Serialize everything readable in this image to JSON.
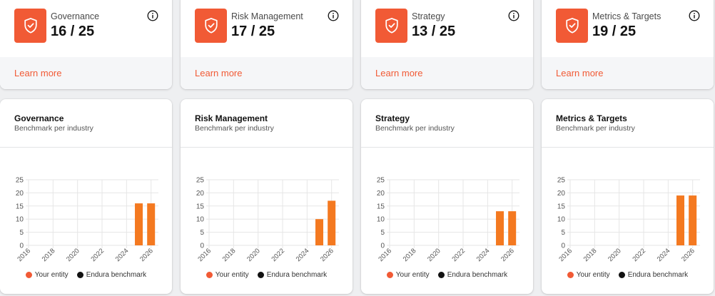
{
  "colors": {
    "accent": "#f15a35",
    "entity_bar": "#f47920",
    "benchmark": "#111111",
    "grid": "#e6e6e6"
  },
  "icons": {
    "category": "shield-check-icon",
    "info": "info-icon"
  },
  "categories": [
    {
      "label": "Governance",
      "score": "16 / 25",
      "learn_more": "Learn more",
      "chart_title": "Governance",
      "chart_subtitle": "Benchmark per industry"
    },
    {
      "label": "Risk Management",
      "score": "17 / 25",
      "learn_more": "Learn more",
      "chart_title": "Risk Management",
      "chart_subtitle": "Benchmark per industry"
    },
    {
      "label": "Strategy",
      "score": "13 / 25",
      "learn_more": "Learn more",
      "chart_title": "Strategy",
      "chart_subtitle": "Benchmark per industry"
    },
    {
      "label": "Metrics & Targets",
      "score": "19 / 25",
      "learn_more": "Learn more",
      "chart_title": "Metrics & Targets",
      "chart_subtitle": "Benchmark per industry"
    }
  ],
  "legend": {
    "entity": "Your entity",
    "benchmark": "Endura benchmark"
  },
  "chart_data": [
    {
      "type": "bar",
      "title": "Governance",
      "subtitle": "Benchmark per industry",
      "x_ticks": [
        "2016",
        "2018",
        "2020",
        "2022",
        "2024",
        "2026"
      ],
      "y_ticks": [
        "0",
        "5",
        "10",
        "15",
        "20",
        "25"
      ],
      "ylim": [
        0,
        25
      ],
      "xlim": [
        2016,
        2026.6
      ],
      "grid": true,
      "legend_position": "bottom",
      "series": [
        {
          "name": "Your entity",
          "x": [
            2025,
            2026
          ],
          "values": [
            16,
            16
          ]
        },
        {
          "name": "Endura benchmark",
          "x": [],
          "values": []
        }
      ]
    },
    {
      "type": "bar",
      "title": "Risk Management",
      "subtitle": "Benchmark per industry",
      "x_ticks": [
        "2016",
        "2018",
        "2020",
        "2022",
        "2024",
        "2026"
      ],
      "y_ticks": [
        "0",
        "5",
        "10",
        "15",
        "20",
        "25"
      ],
      "ylim": [
        0,
        25
      ],
      "xlim": [
        2016,
        2026.6
      ],
      "grid": true,
      "legend_position": "bottom",
      "series": [
        {
          "name": "Your entity",
          "x": [
            2025,
            2026
          ],
          "values": [
            10,
            17
          ]
        },
        {
          "name": "Endura benchmark",
          "x": [],
          "values": []
        }
      ]
    },
    {
      "type": "bar",
      "title": "Strategy",
      "subtitle": "Benchmark per industry",
      "x_ticks": [
        "2016",
        "2018",
        "2020",
        "2022",
        "2024",
        "2026"
      ],
      "y_ticks": [
        "0",
        "5",
        "10",
        "15",
        "20",
        "25"
      ],
      "ylim": [
        0,
        25
      ],
      "xlim": [
        2016,
        2026.6
      ],
      "grid": true,
      "legend_position": "bottom",
      "series": [
        {
          "name": "Your entity",
          "x": [
            2025,
            2026
          ],
          "values": [
            13,
            13
          ]
        },
        {
          "name": "Endura benchmark",
          "x": [],
          "values": []
        }
      ]
    },
    {
      "type": "bar",
      "title": "Metrics & Targets",
      "subtitle": "Benchmark per industry",
      "x_ticks": [
        "2016",
        "2018",
        "2020",
        "2022",
        "2024",
        "2026"
      ],
      "y_ticks": [
        "0",
        "5",
        "10",
        "15",
        "20",
        "25"
      ],
      "ylim": [
        0,
        25
      ],
      "xlim": [
        2016,
        2026.6
      ],
      "grid": true,
      "legend_position": "bottom",
      "series": [
        {
          "name": "Your entity",
          "x": [
            2025,
            2026
          ],
          "values": [
            19,
            19
          ]
        },
        {
          "name": "Endura benchmark",
          "x": [],
          "values": []
        }
      ]
    }
  ]
}
